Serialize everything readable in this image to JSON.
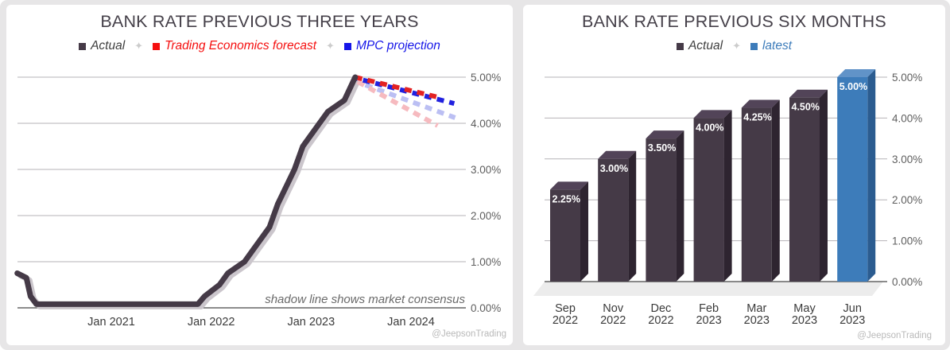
{
  "watermark": "@JeepsonTrading",
  "chart_data": [
    {
      "type": "line",
      "title": "BANK RATE PREVIOUS THREE YEARS",
      "note": "shadow line shows market consensus",
      "legend": [
        {
          "label": "Actual",
          "swatch": "#453A47",
          "text_color": "#3D3D3D"
        },
        {
          "label": "Trading Economics forecast",
          "swatch": "#F50F0F",
          "text_color": "#F50F0F"
        },
        {
          "label": "MPC projection",
          "swatch": "#1515E8",
          "text_color": "#1515E8"
        }
      ],
      "x_unit": "months since Jan 2020",
      "x_ticks": [
        {
          "x": 12,
          "label": "Jan 2021"
        },
        {
          "x": 24,
          "label": "Jan 2022"
        },
        {
          "x": 36,
          "label": "Jan 2023"
        },
        {
          "x": 48,
          "label": "Jan 2024"
        }
      ],
      "ylim": [
        0,
        5
      ],
      "y_ticks": [
        {
          "v": 0,
          "label": "0.00%"
        },
        {
          "v": 1,
          "label": "1.00%"
        },
        {
          "v": 2,
          "label": "2.00%"
        },
        {
          "v": 3,
          "label": "3.00%"
        },
        {
          "v": 4,
          "label": "4.00%"
        },
        {
          "v": 5,
          "label": "5.00%"
        }
      ],
      "series": [
        {
          "name": "Actual",
          "color": "#453A47",
          "style": "solid",
          "has_gray_shadow": true,
          "points": [
            [
              0.7,
              0.75
            ],
            [
              1.8,
              0.65
            ],
            [
              2.3,
              0.25
            ],
            [
              3.0,
              0.08
            ],
            [
              22.4,
              0.08
            ],
            [
              23.2,
              0.25
            ],
            [
              25.0,
              0.5
            ],
            [
              26.0,
              0.75
            ],
            [
              28.0,
              1.0
            ],
            [
              29.0,
              1.25
            ],
            [
              31.0,
              1.75
            ],
            [
              32.0,
              2.25
            ],
            [
              34.0,
              3.0
            ],
            [
              35.0,
              3.5
            ],
            [
              37.0,
              4.0
            ],
            [
              38.0,
              4.25
            ],
            [
              40.0,
              4.5
            ],
            [
              41.3,
              5.0
            ]
          ]
        },
        {
          "name": "Trading Economics forecast",
          "color": "#E32222",
          "style": "dashed",
          "points": [
            [
              41.3,
              5.0
            ],
            [
              51.6,
              4.55
            ]
          ]
        },
        {
          "name": "MPC projection",
          "color": "#2121DF",
          "style": "dashed",
          "dash_phase": 8,
          "points": [
            [
              41.5,
              4.97
            ],
            [
              53.2,
              4.43
            ]
          ]
        },
        {
          "name": "market consensus shadow of Trading Economics forecast",
          "color": "#F6BABF",
          "style": "dashed",
          "points": [
            [
              41.6,
              4.9
            ],
            [
              51.2,
              3.95
            ]
          ]
        },
        {
          "name": "market consensus shadow of MPC projection",
          "color": "#BBBFF3",
          "style": "dashed",
          "dash_phase": 8,
          "points": [
            [
              41.8,
              4.88
            ],
            [
              53.3,
              4.12
            ]
          ]
        }
      ]
    },
    {
      "type": "bar",
      "title": "BANK RATE PREVIOUS SIX MONTHS",
      "legend": [
        {
          "label": "Actual",
          "swatch": "#453A47",
          "text_color": "#3D3D3D"
        },
        {
          "label": "latest",
          "swatch": "#3D7CBA",
          "text_color": "#3D7CBA"
        }
      ],
      "categories": [
        [
          "Sep",
          "2022"
        ],
        [
          "Nov",
          "2022"
        ],
        [
          "Dec",
          "2022"
        ],
        [
          "Feb",
          "2023"
        ],
        [
          "Mar",
          "2023"
        ],
        [
          "May",
          "2023"
        ],
        [
          "Jun",
          "2023"
        ]
      ],
      "values": [
        2.25,
        3.0,
        3.5,
        4.0,
        4.25,
        4.5,
        5.0
      ],
      "value_labels": [
        "2.25%",
        "3.00%",
        "3.50%",
        "4.00%",
        "4.25%",
        "4.50%",
        "5.00%"
      ],
      "latest_index": 6,
      "colors": {
        "actual": {
          "front": "#453A47",
          "side": "#2E2430",
          "top": "#524458"
        },
        "latest": {
          "front": "#3D7CBA",
          "side": "#2B5C90",
          "top": "#6193C8"
        }
      },
      "ylim": [
        0,
        5
      ],
      "y_ticks": [
        {
          "v": 0,
          "label": "0.00%"
        },
        {
          "v": 1,
          "label": "1.00%"
        },
        {
          "v": 2,
          "label": "2.00%"
        },
        {
          "v": 3,
          "label": "3.00%"
        },
        {
          "v": 4,
          "label": "4.00%"
        },
        {
          "v": 5,
          "label": "5.00%"
        }
      ]
    }
  ]
}
